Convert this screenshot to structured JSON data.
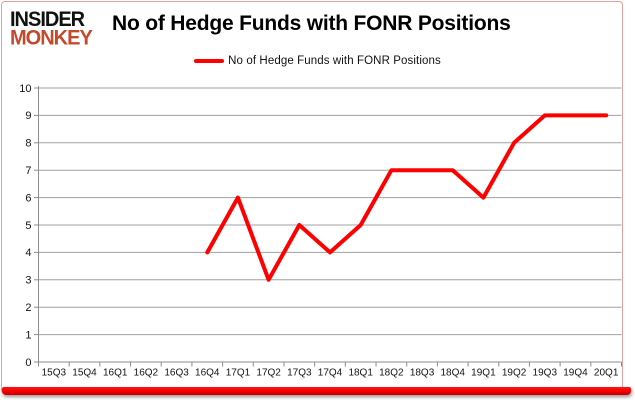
{
  "brand": {
    "line1": "INSIDER",
    "line2": "MONKEY",
    "monkey_color": "#c7492b"
  },
  "header": {
    "title": "No of Hedge Funds with FONR Positions"
  },
  "legend": {
    "label": "No of Hedge Funds with FONR Positions",
    "swatch_color": "#ff0000"
  },
  "chart_data": {
    "type": "line",
    "title": "No of Hedge Funds with FONR Positions",
    "categories": [
      "15Q3",
      "15Q4",
      "16Q1",
      "16Q2",
      "16Q3",
      "16Q4",
      "17Q1",
      "17Q2",
      "17Q3",
      "17Q4",
      "18Q1",
      "18Q2",
      "18Q3",
      "18Q4",
      "19Q1",
      "19Q2",
      "19Q3",
      "19Q4",
      "20Q1"
    ],
    "series": [
      {
        "name": "No of Hedge Funds with FONR Positions",
        "color": "#ff0000",
        "values": [
          null,
          null,
          null,
          null,
          null,
          4,
          6,
          3,
          5,
          4,
          5,
          7,
          7,
          7,
          6,
          8,
          9,
          9,
          9
        ]
      }
    ],
    "xlabel": "",
    "ylabel": "",
    "ylim": [
      0,
      10
    ],
    "ytick_interval": 1,
    "grid": true,
    "legend_position": "top-center",
    "gridline_color": "#a0a0a0",
    "axis_color": "#8c8c8c",
    "line_width": 4
  },
  "footer": {
    "bar_color_top": "#ff1414",
    "bar_color_bottom": "#c40000"
  }
}
